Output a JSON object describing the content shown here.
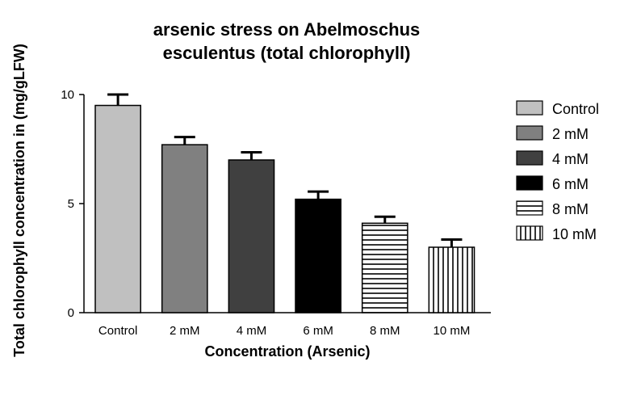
{
  "chart_data": {
    "type": "bar",
    "title": "arsenic stress on Abelmoschus esculentus (total chlorophyll)",
    "title_lines": [
      "arsenic stress on Abelmoschus",
      "esculentus (total chlorophyll)"
    ],
    "xlabel": "Concentration (Arsenic)",
    "ylabel": "Total chlorophyll concentration in (mg/gLFW)",
    "categories": [
      "Control",
      "2 mM",
      "4 mM",
      "6 mM",
      "8 mM",
      "10 mM"
    ],
    "values": [
      9.5,
      7.7,
      7.0,
      5.2,
      4.1,
      3.0
    ],
    "errors": [
      0.5,
      0.35,
      0.35,
      0.35,
      0.3,
      0.35
    ],
    "ylim": [
      0,
      10
    ],
    "yticks": [
      0,
      5,
      10
    ],
    "grid": false,
    "legend": {
      "position": "right",
      "entries": [
        "Control",
        "2 mM",
        "4 mM",
        "6 mM",
        "8 mM",
        "10 mM"
      ]
    },
    "bar_styles": [
      {
        "fill": "#c0c0c0",
        "pattern": "solid"
      },
      {
        "fill": "#808080",
        "pattern": "solid"
      },
      {
        "fill": "#404040",
        "pattern": "solid"
      },
      {
        "fill": "#000000",
        "pattern": "solid"
      },
      {
        "fill": "#ffffff",
        "pattern": "horizontal-stripes"
      },
      {
        "fill": "#ffffff",
        "pattern": "vertical-stripes"
      }
    ]
  }
}
